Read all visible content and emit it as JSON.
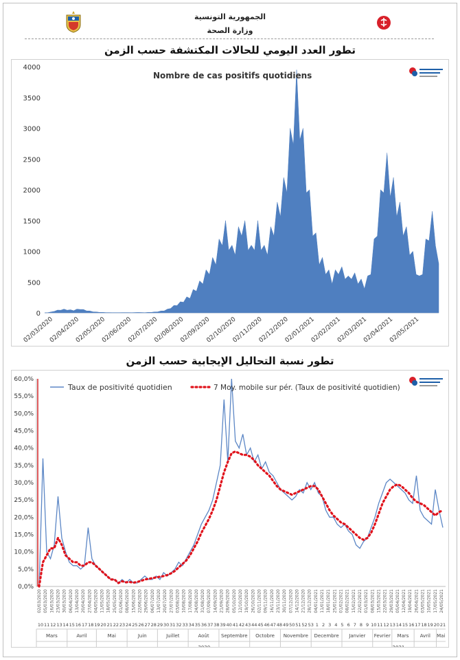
{
  "header": {
    "line1": "الجمهورية التونسية",
    "line2": "وزارة الصحة"
  },
  "section1": {
    "title": "تطور العدد اليومي للحالات المكتشفة حسب الزمن"
  },
  "section2": {
    "title": "تطور نسبة التحاليل الإيجابية حسب الزمن"
  },
  "colors": {
    "area": "#4f7fc0",
    "line": "#5b86c5",
    "avg": "#e0131c",
    "red_marker": "#d62728"
  },
  "chart_data": [
    {
      "type": "area",
      "title": "Nombre de cas positifs quotidiens",
      "ylim": [
        0,
        4000
      ],
      "yticks": [
        "0",
        "500",
        "1000",
        "1500",
        "2000",
        "2500",
        "3000",
        "3500",
        "4000"
      ],
      "xticks": [
        "02/03/2020",
        "02/04/2020",
        "02/05/2020",
        "02/06/2020",
        "02/07/2020",
        "02/08/2020",
        "02/09/2020",
        "02/10/2020",
        "02/11/2020",
        "02/12/2020",
        "02/01/2021",
        "02/02/2021",
        "02/03/2021",
        "02/04/2021",
        "02/05/2021"
      ],
      "series": [
        {
          "values": [
            0,
            5,
            15,
            30,
            45,
            55,
            60,
            55,
            50,
            45,
            60,
            70,
            55,
            40,
            30,
            20,
            15,
            10,
            8,
            6,
            5,
            4,
            3,
            4,
            5,
            6,
            5,
            4,
            6,
            8,
            6,
            5,
            8,
            10,
            15,
            20,
            30,
            40,
            60,
            90,
            120,
            150,
            180,
            220,
            260,
            300,
            380,
            450,
            520,
            600,
            700,
            800,
            900,
            1000,
            1200,
            1400,
            1500,
            1300,
            1100,
            1200,
            1400,
            1600,
            1500,
            1300,
            1100,
            1300,
            1500,
            1300,
            1100,
            1200,
            1400,
            1600,
            1800,
            2000,
            2200,
            2500,
            3000,
            3500,
            3950,
            3600,
            3000,
            2500,
            2000,
            1600,
            1300,
            1000,
            900,
            800,
            700,
            600,
            700,
            800,
            750,
            700,
            600,
            700,
            650,
            600,
            550,
            500,
            600,
            800,
            1200,
            1600,
            2000,
            2500,
            2600,
            2400,
            2200,
            2000,
            1800,
            1600,
            1400,
            1200,
            1000,
            800,
            600,
            800,
            1200,
            1500,
            1650,
            1400,
            800
          ]
        }
      ]
    },
    {
      "type": "line",
      "ylim": [
        0,
        60
      ],
      "yticks": [
        "0,0%",
        "5,0%",
        "10,0%",
        "15,0%",
        "20,0%",
        "25,0%",
        "30,0%",
        "35,0%",
        "40,0%",
        "45,0%",
        "50,0%",
        "55,0%",
        "60,0%"
      ],
      "legend": [
        "Taux de positivité quotidien",
        "7 Moy. mobile sur pér. (Taux de positivité quotidien)"
      ],
      "months_2020": [
        "Mars",
        "Avril",
        "Mai",
        "Juin",
        "Juillet",
        "Août",
        "Septembre",
        "Octobre",
        "Novembre",
        "Decembre"
      ],
      "months_2021": [
        "Janvier",
        "Fevrier",
        "Mars",
        "Avril",
        "Mai"
      ],
      "years": [
        "2020",
        "2021"
      ],
      "x_date_ticks": [
        "02/03/2020",
        "05/03/2020",
        "16/03/2020",
        "23/03/2020",
        "30/03/2020",
        "06/04/2020",
        "13/04/2020",
        "20/04/2020",
        "27/04/2020",
        "04/05/2020",
        "11/05/2020",
        "18/05/2020",
        "25/05/2020",
        "01/06/2020",
        "08/06/2020",
        "15/06/2020",
        "22/06/2020",
        "29/06/2020",
        "06/07/2020",
        "13/07/2020",
        "20/07/2020",
        "27/07/2020",
        "03/08/2020",
        "10/08/2020",
        "17/08/2020",
        "24/08/2020",
        "31/08/2020",
        "07/09/2020",
        "14/09/2020",
        "21/09/2020",
        "28/09/2020",
        "05/10/2020",
        "12/10/2020",
        "19/10/2020",
        "26/10/2020",
        "02/11/2020",
        "09/11/2020",
        "16/11/2020",
        "23/11/2020",
        "30/11/2020",
        "07/12/2020",
        "14/12/2020",
        "21/12/2020",
        "28/12/2020",
        "04/01/2021",
        "11/01/2021",
        "18/01/2021",
        "25/01/2021",
        "01/02/2021",
        "08/02/2021",
        "15/02/2021",
        "22/02/2021",
        "01/03/2021",
        "08/03/2021",
        "15/03/2021",
        "22/03/2021",
        "29/03/2021",
        "05/04/2021",
        "12/04/2021",
        "19/04/2021",
        "26/04/2021",
        "03/05/2021",
        "10/05/2021",
        "17/05/2021",
        "24/05/2021"
      ],
      "week_labels": [
        "10",
        "11",
        "12",
        "13",
        "14",
        "15",
        "16",
        "17",
        "18",
        "19",
        "20",
        "21",
        "22",
        "23",
        "24",
        "25",
        "26",
        "27",
        "28",
        "29",
        "30",
        "31",
        "32",
        "33",
        "34",
        "35",
        "36",
        "37",
        "38",
        "39",
        "40",
        "41",
        "42",
        "43",
        "44",
        "45",
        "46",
        "47",
        "48",
        "49",
        "50",
        "51",
        "52",
        "53",
        "1",
        "2",
        "3",
        "4",
        "5",
        "6",
        "7",
        "8",
        "9",
        "10",
        "11",
        "12",
        "13",
        "14",
        "15",
        "16",
        "17",
        "18",
        "19",
        "20",
        "21"
      ],
      "series": [
        {
          "name": "Taux de positivité quotidien",
          "values": [
            0,
            37,
            10,
            8,
            12,
            26,
            14,
            10,
            7,
            6,
            6,
            5,
            6,
            17,
            8,
            6,
            5,
            4,
            3,
            2,
            2,
            1,
            2,
            1,
            2,
            1,
            1,
            2,
            3,
            2,
            2,
            3,
            2,
            4,
            3,
            4,
            5,
            7,
            6,
            8,
            10,
            12,
            15,
            18,
            20,
            22,
            25,
            30,
            35,
            54,
            36,
            60,
            42,
            40,
            44,
            38,
            40,
            36,
            38,
            34,
            36,
            33,
            32,
            30,
            28,
            27,
            26,
            25,
            26,
            28,
            27,
            30,
            28,
            30,
            27,
            26,
            22,
            20,
            20,
            18,
            17,
            18,
            16,
            15,
            12,
            11,
            13,
            14,
            17,
            20,
            24,
            27,
            30,
            31,
            30,
            29,
            28,
            27,
            25,
            24,
            32,
            22,
            20,
            19,
            18,
            28,
            22,
            17
          ]
        },
        {
          "name": "7 Moy. mobile sur pér. (Taux de positivité quotidien)",
          "values": [
            0,
            7,
            9,
            11,
            11,
            14,
            12,
            9,
            8,
            7,
            7,
            6,
            6,
            7,
            7,
            6,
            5,
            4,
            3,
            2,
            2,
            1,
            1.5,
            1.2,
            1.3,
            1.1,
            1.3,
            1.6,
            2,
            2.2,
            2.4,
            2.6,
            2.8,
            3,
            3.3,
            3.8,
            4.5,
            5.5,
            6.5,
            7.5,
            9,
            11,
            13,
            15.5,
            17.5,
            19.5,
            22,
            25,
            29,
            33,
            36,
            38.5,
            39,
            38.5,
            38,
            38,
            37.5,
            36.5,
            35,
            34,
            33,
            32,
            30.5,
            29,
            28,
            27.5,
            27,
            26.5,
            27,
            27.5,
            28,
            28.5,
            29,
            29,
            28,
            26,
            24,
            22,
            20.5,
            19.5,
            18.5,
            18,
            17,
            16,
            15,
            14,
            13.5,
            14,
            15.5,
            18,
            21,
            24,
            26,
            28,
            29,
            29.5,
            29,
            28,
            27,
            25.5,
            24.5,
            24,
            23.5,
            22.5,
            21.5,
            20.5,
            21.5,
            22
          ]
        }
      ]
    }
  ]
}
